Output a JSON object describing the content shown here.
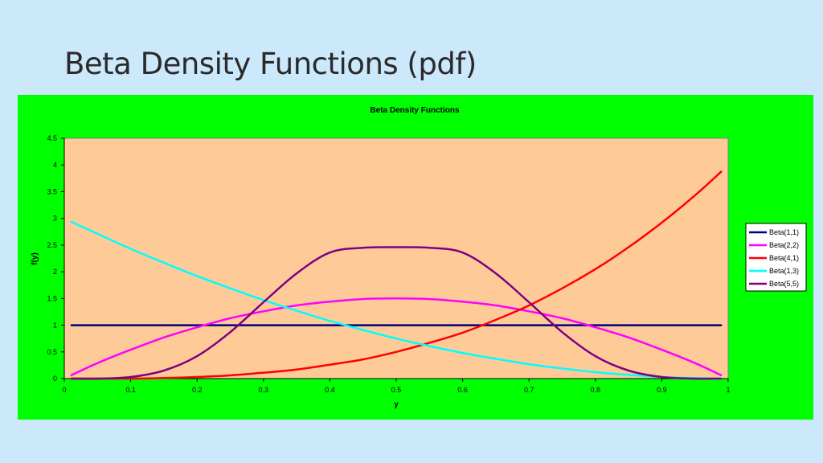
{
  "slide": {
    "title": "Beta Density Functions (pdf)"
  },
  "colors": {
    "slide_background": "#cce8fb",
    "chart_area": "#00ff00",
    "plot_area": "#fecb98"
  },
  "chart_data": {
    "type": "line",
    "title": "Beta Density Functions",
    "xlabel": "y",
    "ylabel": "f(y)",
    "xlim": [
      0,
      1
    ],
    "ylim": [
      0,
      4.5
    ],
    "x_ticks": [
      "0",
      "0.1",
      "0.2",
      "0.3",
      "0.4",
      "0.5",
      "0.6",
      "0.7",
      "0.8",
      "0.9",
      "1"
    ],
    "y_ticks": [
      "0",
      "0.5",
      "1",
      "1.5",
      "2",
      "2.5",
      "3",
      "3.5",
      "4",
      "4.5"
    ],
    "grid": false,
    "legend_position": "right",
    "x": [
      0.01,
      0.05,
      0.1,
      0.15,
      0.2,
      0.25,
      0.3,
      0.35,
      0.4,
      0.45,
      0.5,
      0.55,
      0.6,
      0.65,
      0.7,
      0.75,
      0.8,
      0.85,
      0.9,
      0.95,
      0.99
    ],
    "series": [
      {
        "name": "Beta(1,1)",
        "color": "#000080",
        "values": [
          1,
          1,
          1,
          1,
          1,
          1,
          1,
          1,
          1,
          1,
          1,
          1,
          1,
          1,
          1,
          1,
          1,
          1,
          1,
          1,
          1
        ]
      },
      {
        "name": "Beta(2,2)",
        "color": "#ff00ff",
        "values": [
          0.06,
          0.29,
          0.54,
          0.77,
          0.96,
          1.13,
          1.26,
          1.37,
          1.44,
          1.49,
          1.5,
          1.49,
          1.44,
          1.37,
          1.26,
          1.13,
          0.96,
          0.77,
          0.54,
          0.29,
          0.06
        ]
      },
      {
        "name": "Beta(4,1)",
        "color": "#ff0000",
        "values": [
          0,
          0,
          0,
          0.01,
          0.03,
          0.06,
          0.11,
          0.17,
          0.26,
          0.36,
          0.5,
          0.67,
          0.86,
          1.1,
          1.37,
          1.69,
          2.05,
          2.46,
          2.92,
          3.43,
          3.88
        ]
      },
      {
        "name": "Beta(1,3)",
        "color": "#00ffff",
        "values": [
          2.94,
          2.71,
          2.43,
          2.17,
          1.92,
          1.69,
          1.47,
          1.27,
          1.08,
          0.91,
          0.75,
          0.61,
          0.48,
          0.37,
          0.27,
          0.19,
          0.12,
          0.07,
          0.03,
          0.01,
          0
        ]
      },
      {
        "name": "Beta(5,5)",
        "color": "#800080",
        "values": [
          0,
          0,
          0.03,
          0.15,
          0.42,
          0.87,
          1.43,
          1.97,
          2.36,
          2.45,
          2.46,
          2.45,
          2.36,
          1.97,
          1.43,
          0.87,
          0.42,
          0.15,
          0.03,
          0,
          0
        ]
      }
    ]
  }
}
